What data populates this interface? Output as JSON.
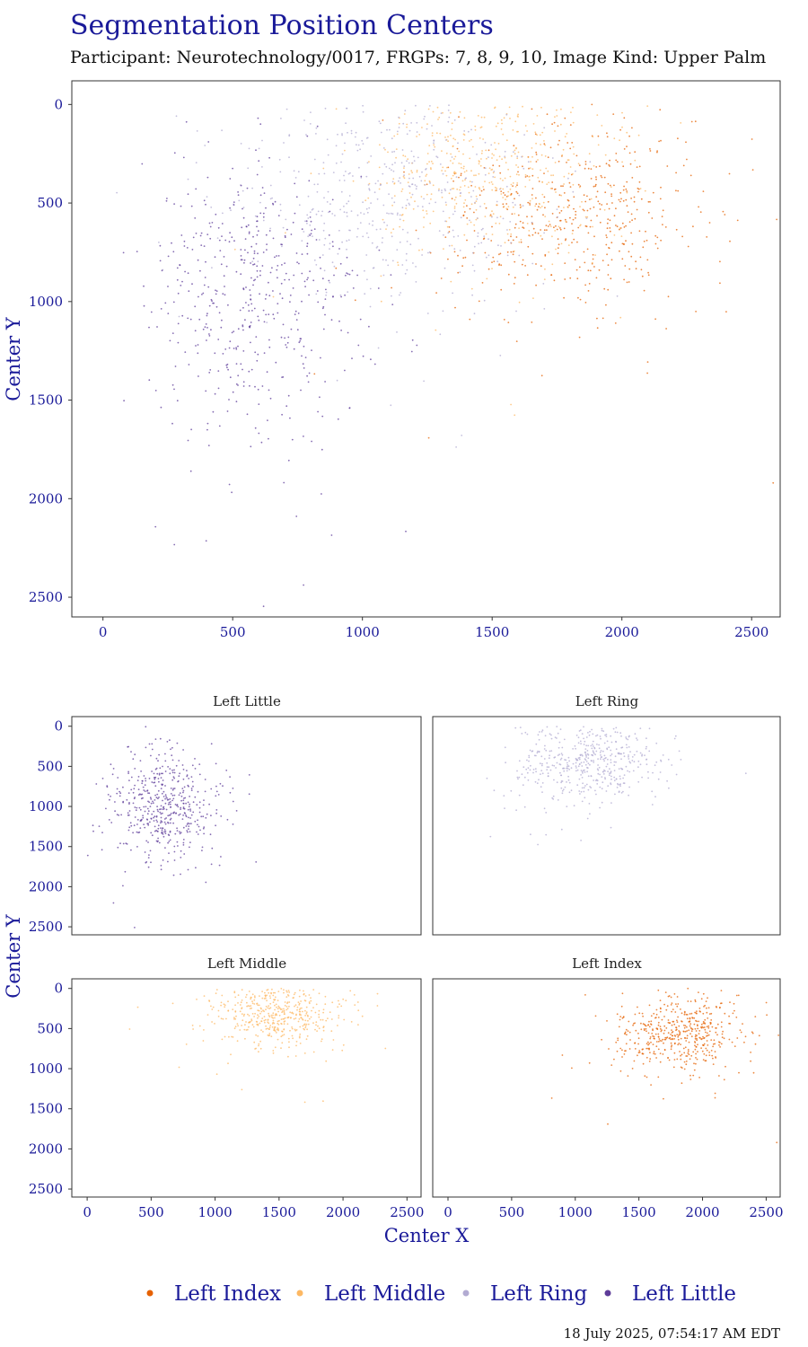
{
  "title": "Segmentation Position Centers",
  "subtitle": "Participant: Neurotechnology/0017, FRGPs: 7, 8, 9, 10, Image Kind: Upper Palm",
  "footer": "18 July 2025, 07:54:17 AM EDT",
  "main_plot": {
    "xlabel": "",
    "ylabel": "Center Y",
    "xticks": [
      "0",
      "500",
      "1000",
      "1500",
      "2000",
      "2500"
    ],
    "yticks": [
      "0",
      "500",
      "1000",
      "1500",
      "2000",
      "2500"
    ]
  },
  "facet_plot": {
    "xlabel": "Center X",
    "ylabel": "Center Y",
    "panels": [
      "Left Little",
      "Left Ring",
      "Left Middle",
      "Left Index"
    ],
    "xticks": [
      "0",
      "500",
      "1000",
      "1500",
      "2000",
      "2500"
    ],
    "yticks": [
      "0",
      "500",
      "1000",
      "1500",
      "2000",
      "2500"
    ]
  },
  "legend": [
    {
      "label": "Left Index",
      "color": "#e66101"
    },
    {
      "label": "Left Middle",
      "color": "#fdb863"
    },
    {
      "label": "Left Ring",
      "color": "#b2abd2"
    },
    {
      "label": "Left Little",
      "color": "#5e3c99"
    }
  ],
  "chart_data": [
    {
      "type": "scatter",
      "title": "Segmentation Position Centers",
      "xlabel": "",
      "ylabel": "Center Y",
      "xlim": [
        -120,
        2610
      ],
      "ylim": [
        2600,
        -120
      ],
      "y_reversed": true,
      "grid": false,
      "legend_position": "bottom",
      "series": [
        {
          "name": "Left Index",
          "color": "#e66101",
          "center": [
            1800,
            560
          ],
          "spread": [
            260,
            230
          ],
          "count": 500
        },
        {
          "name": "Left Middle",
          "color": "#fdb863",
          "center": [
            1480,
            300
          ],
          "spread": [
            260,
            220
          ],
          "count": 500
        },
        {
          "name": "Left Ring",
          "color": "#b2abd2",
          "center": [
            1080,
            430
          ],
          "spread": [
            300,
            280
          ],
          "count": 500
        },
        {
          "name": "Left Little",
          "color": "#5e3c99",
          "center": [
            600,
            980
          ],
          "spread": [
            220,
            350
          ],
          "count": 500
        }
      ]
    },
    {
      "type": "scatter",
      "facet": "Left Little",
      "series": [
        {
          "name": "Left Little",
          "color": "#5e3c99",
          "center": [
            600,
            980
          ],
          "spread": [
            220,
            350
          ],
          "count": 500
        }
      ]
    },
    {
      "type": "scatter",
      "facet": "Left Ring",
      "series": [
        {
          "name": "Left Ring",
          "color": "#b2abd2",
          "center": [
            1080,
            430
          ],
          "spread": [
            300,
            280
          ],
          "count": 500
        }
      ]
    },
    {
      "type": "scatter",
      "facet": "Left Middle",
      "series": [
        {
          "name": "Left Middle",
          "color": "#fdb863",
          "center": [
            1480,
            300
          ],
          "spread": [
            260,
            220
          ],
          "count": 500
        }
      ]
    },
    {
      "type": "scatter",
      "facet": "Left Index",
      "series": [
        {
          "name": "Left Index",
          "color": "#e66101",
          "center": [
            1800,
            560
          ],
          "spread": [
            260,
            230
          ],
          "count": 500
        }
      ]
    }
  ]
}
